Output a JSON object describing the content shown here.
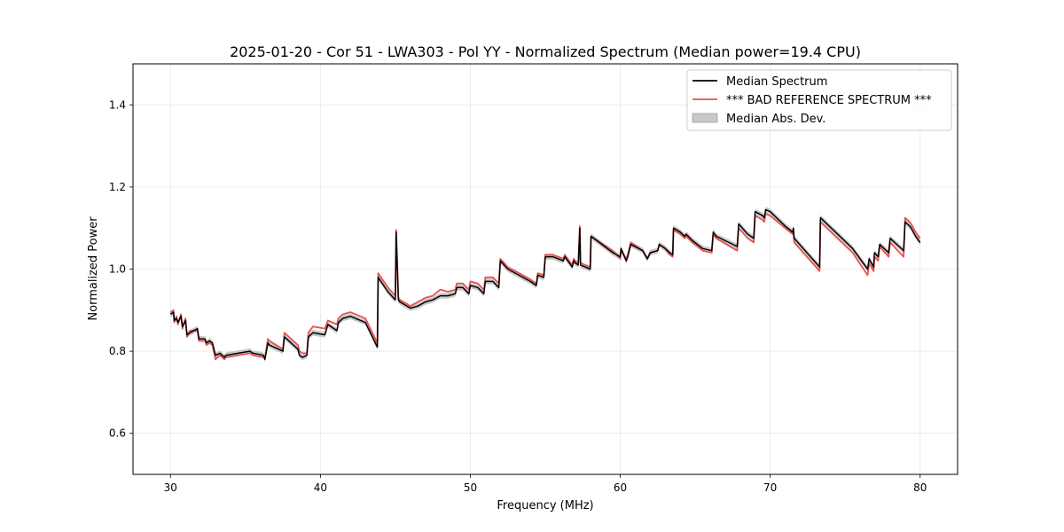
{
  "chart_data": {
    "type": "line",
    "title": "2025-01-20 - Cor 51 - LWA303 - Pol YY - Normalized Spectrum (Median power=19.4 CPU)",
    "xlabel": "Frequency (MHz)",
    "ylabel": "Normalized Power",
    "xlim": [
      27.5,
      82.5
    ],
    "ylim": [
      0.5,
      1.5
    ],
    "xticks": [
      30,
      40,
      50,
      60,
      70,
      80
    ],
    "yticks": [
      0.6,
      0.8,
      1.0,
      1.2,
      1.4
    ],
    "xtick_labels": [
      "30",
      "40",
      "50",
      "60",
      "70",
      "80"
    ],
    "ytick_labels": [
      "0.6",
      "0.8",
      "1.0",
      "1.2",
      "1.4"
    ],
    "grid": true,
    "legend_position": "top-right",
    "legend": [
      {
        "label": "Median Spectrum",
        "kind": "line",
        "color": "#000000"
      },
      {
        "label": "*** BAD REFERENCE SPECTRUM ***",
        "kind": "line",
        "color": "#e8504f"
      },
      {
        "label": "Median Abs. Dev.",
        "kind": "patch",
        "color": "#c8c8c8"
      }
    ],
    "band_halfwidth": 0.007,
    "series": [
      {
        "name": "Median Spectrum",
        "color": "#000000",
        "x": [
          30.0,
          30.2,
          30.25,
          30.4,
          30.5,
          30.7,
          30.8,
          31.0,
          31.1,
          31.3,
          31.8,
          31.9,
          32.3,
          32.4,
          32.6,
          32.8,
          33.0,
          33.3,
          33.6,
          33.7,
          34.5,
          35.3,
          35.5,
          36.2,
          36.3,
          36.5,
          36.6,
          37.5,
          37.6,
          38.5,
          38.6,
          38.8,
          39.1,
          39.2,
          39.5,
          40.3,
          40.5,
          41.1,
          41.2,
          41.5,
          42.0,
          43.0,
          43.8,
          43.85,
          44.5,
          45.0,
          45.05,
          45.2,
          45.3,
          46.0,
          46.5,
          47.0,
          47.5,
          48.0,
          48.5,
          49.0,
          49.1,
          49.5,
          49.9,
          50.0,
          50.5,
          50.9,
          51.0,
          51.5,
          51.9,
          52.0,
          52.5,
          53.0,
          54.0,
          54.4,
          54.5,
          54.9,
          55.0,
          55.5,
          56.2,
          56.3,
          56.8,
          56.9,
          57.0,
          57.2,
          57.3,
          57.35,
          58.0,
          58.05,
          59.5,
          60.0,
          60.05,
          60.4,
          60.5,
          60.7,
          61.5,
          61.8,
          62.0,
          62.5,
          62.6,
          63.0,
          63.3,
          63.5,
          63.55,
          64.0,
          64.3,
          64.4,
          64.8,
          65.5,
          66.1,
          66.2,
          66.4,
          67.8,
          67.9,
          68.5,
          68.9,
          69.0,
          69.5,
          69.6,
          69.7,
          70.0,
          71.0,
          71.5,
          71.55,
          71.6,
          73.3,
          73.35,
          74.5,
          75.5,
          76.5,
          76.6,
          76.9,
          76.95,
          77.2,
          77.3,
          77.9,
          78.0,
          78.9,
          79.0,
          79.3,
          79.4,
          79.7,
          80.0
        ],
        "values": [
          0.89,
          0.895,
          0.875,
          0.88,
          0.87,
          0.885,
          0.86,
          0.875,
          0.84,
          0.845,
          0.855,
          0.83,
          0.83,
          0.82,
          0.825,
          0.82,
          0.79,
          0.795,
          0.785,
          0.79,
          0.795,
          0.8,
          0.795,
          0.79,
          0.78,
          0.82,
          0.815,
          0.8,
          0.835,
          0.805,
          0.79,
          0.785,
          0.79,
          0.835,
          0.845,
          0.84,
          0.865,
          0.85,
          0.87,
          0.88,
          0.885,
          0.87,
          0.81,
          0.98,
          0.945,
          0.925,
          1.09,
          0.925,
          0.92,
          0.905,
          0.91,
          0.92,
          0.925,
          0.935,
          0.935,
          0.94,
          0.955,
          0.955,
          0.94,
          0.96,
          0.955,
          0.94,
          0.97,
          0.97,
          0.955,
          1.02,
          1.0,
          0.99,
          0.97,
          0.96,
          0.985,
          0.98,
          1.03,
          1.03,
          1.02,
          1.03,
          1.005,
          1.02,
          1.015,
          1.01,
          1.1,
          1.01,
          1.0,
          1.08,
          1.04,
          1.03,
          1.05,
          1.02,
          1.03,
          1.06,
          1.045,
          1.025,
          1.04,
          1.045,
          1.06,
          1.05,
          1.04,
          1.035,
          1.1,
          1.09,
          1.08,
          1.085,
          1.07,
          1.05,
          1.045,
          1.09,
          1.08,
          1.055,
          1.11,
          1.085,
          1.075,
          1.14,
          1.13,
          1.125,
          1.145,
          1.14,
          1.105,
          1.09,
          1.1,
          1.075,
          1.005,
          1.125,
          1.085,
          1.05,
          1.0,
          1.025,
          1.005,
          1.04,
          1.03,
          1.06,
          1.04,
          1.075,
          1.045,
          1.115,
          1.105,
          1.1,
          1.08,
          1.065
        ]
      },
      {
        "name": "*** BAD REFERENCE SPECTRUM ***",
        "color": "#e8504f",
        "x": [
          30.0,
          30.2,
          30.25,
          30.4,
          30.5,
          30.7,
          30.8,
          31.0,
          31.1,
          31.3,
          31.8,
          31.9,
          32.3,
          32.4,
          32.6,
          32.8,
          33.0,
          33.3,
          33.6,
          33.7,
          34.5,
          35.3,
          35.5,
          36.2,
          36.3,
          36.5,
          36.6,
          37.5,
          37.6,
          38.5,
          38.6,
          38.8,
          39.1,
          39.2,
          39.5,
          40.3,
          40.5,
          41.1,
          41.2,
          41.5,
          42.0,
          43.0,
          43.8,
          43.85,
          44.5,
          45.0,
          45.05,
          45.2,
          45.3,
          46.0,
          46.5,
          47.0,
          47.5,
          48.0,
          48.5,
          49.0,
          49.1,
          49.5,
          49.9,
          50.0,
          50.5,
          50.9,
          51.0,
          51.5,
          51.9,
          52.0,
          52.5,
          53.0,
          54.0,
          54.4,
          54.5,
          54.9,
          55.0,
          55.5,
          56.2,
          56.3,
          56.8,
          56.9,
          57.0,
          57.2,
          57.3,
          57.35,
          58.0,
          58.05,
          59.5,
          60.0,
          60.05,
          60.4,
          60.5,
          60.7,
          61.5,
          61.8,
          62.0,
          62.5,
          62.6,
          63.0,
          63.3,
          63.5,
          63.55,
          64.0,
          64.3,
          64.4,
          64.8,
          65.5,
          66.1,
          66.2,
          66.4,
          67.8,
          67.9,
          68.5,
          68.9,
          69.0,
          69.5,
          69.6,
          69.7,
          70.0,
          71.0,
          71.5,
          71.55,
          71.6,
          73.3,
          73.35,
          74.5,
          75.5,
          76.5,
          76.6,
          76.9,
          76.95,
          77.2,
          77.3,
          77.9,
          78.0,
          78.9,
          79.0,
          79.3,
          79.4,
          79.7,
          80.0
        ],
        "values": [
          0.895,
          0.9,
          0.87,
          0.885,
          0.865,
          0.89,
          0.855,
          0.88,
          0.835,
          0.85,
          0.85,
          0.825,
          0.825,
          0.815,
          0.82,
          0.815,
          0.78,
          0.79,
          0.78,
          0.785,
          0.79,
          0.795,
          0.79,
          0.785,
          0.785,
          0.83,
          0.825,
          0.805,
          0.845,
          0.815,
          0.8,
          0.795,
          0.795,
          0.845,
          0.86,
          0.855,
          0.875,
          0.865,
          0.88,
          0.89,
          0.895,
          0.88,
          0.82,
          0.99,
          0.955,
          0.935,
          1.095,
          0.93,
          0.925,
          0.91,
          0.92,
          0.93,
          0.935,
          0.95,
          0.945,
          0.95,
          0.965,
          0.965,
          0.95,
          0.97,
          0.965,
          0.95,
          0.98,
          0.98,
          0.965,
          1.025,
          1.005,
          0.995,
          0.975,
          0.965,
          0.99,
          0.985,
          1.035,
          1.035,
          1.025,
          1.035,
          1.01,
          1.025,
          1.02,
          1.015,
          1.105,
          1.015,
          1.005,
          1.08,
          1.045,
          1.025,
          1.045,
          1.025,
          1.035,
          1.065,
          1.045,
          1.025,
          1.04,
          1.045,
          1.06,
          1.05,
          1.035,
          1.03,
          1.095,
          1.085,
          1.075,
          1.08,
          1.065,
          1.045,
          1.04,
          1.085,
          1.075,
          1.045,
          1.1,
          1.075,
          1.065,
          1.13,
          1.12,
          1.115,
          1.135,
          1.13,
          1.1,
          1.085,
          1.09,
          1.065,
          0.995,
          1.115,
          1.075,
          1.04,
          0.985,
          1.015,
          0.995,
          1.03,
          1.02,
          1.055,
          1.03,
          1.065,
          1.03,
          1.125,
          1.115,
          1.11,
          1.09,
          1.075
        ]
      }
    ]
  }
}
